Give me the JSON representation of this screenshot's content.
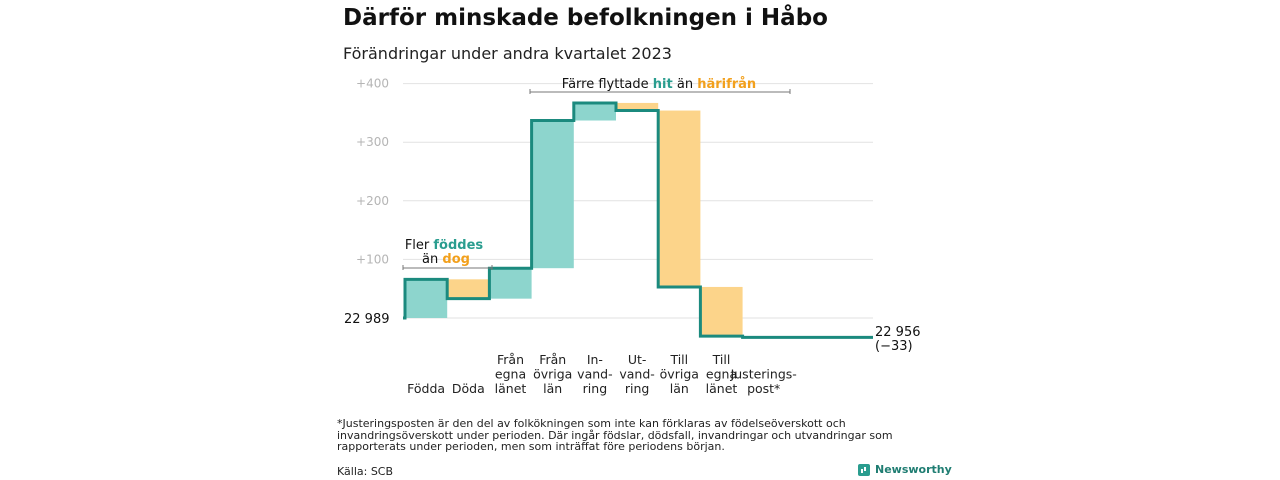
{
  "header": {
    "title": "Därför minskade befolkningen i Håbo",
    "subtitle": "Förändringar under andra kvartalet 2023"
  },
  "colors": {
    "increase": "#8dd5cd",
    "decrease": "#fcd48a",
    "line": "#1b8a7e",
    "teal_text": "#2a9d8f",
    "orange_text": "#f2a01c",
    "grid": "#e2e2e2",
    "tick": "#b5b5b5"
  },
  "annotations": {
    "births": {
      "line1": "Fler ",
      "emph1": "föddes",
      "line2": "än ",
      "emph2": "dog"
    },
    "migration": {
      "pre": "Färre flyttade ",
      "emph1": "hit",
      "mid": " än ",
      "emph2": "härifrån"
    }
  },
  "chart_data": {
    "type": "waterfall",
    "title": "Därför minskade befolkningen i Håbo",
    "subtitle": "Förändringar under andra kvartalet 2023",
    "start": {
      "value": 22989,
      "label": "22  989"
    },
    "end": {
      "value": 22956,
      "label": "22 956",
      "change_label": "(−33)"
    },
    "ylim": [
      0,
      400
    ],
    "yticks": [
      {
        "value": 100,
        "label": "+100"
      },
      {
        "value": 200,
        "label": "+200"
      },
      {
        "value": 300,
        "label": "+300"
      },
      {
        "value": 400,
        "label": "+400"
      }
    ],
    "grid": true,
    "steps": [
      {
        "label": [
          "Födda"
        ],
        "change": 66
      },
      {
        "label": [
          "Döda"
        ],
        "change": -33
      },
      {
        "label": [
          "Från",
          "egna",
          "länet"
        ],
        "change": 52
      },
      {
        "label": [
          "Från",
          "övriga",
          "län"
        ],
        "change": 252
      },
      {
        "label": [
          "In-",
          "vand-",
          "ring"
        ],
        "change": 30
      },
      {
        "label": [
          "Ut-",
          "vand-",
          "ring"
        ],
        "change": -13
      },
      {
        "label": [
          "Till",
          "övriga",
          "län"
        ],
        "change": -301
      },
      {
        "label": [
          "Till",
          "egna",
          "länet"
        ],
        "change": -84
      },
      {
        "label": [
          "Justerings-",
          "post*"
        ],
        "change": -2
      }
    ]
  },
  "footer": {
    "footnote": "*Justeringsposten är den del av folkökningen som inte kan förklaras av födelseöverskott och invandringsöverskott under perioden. Där ingår födslar, dödsfall, invandringar och utvandringar som rapporterats under perioden, men som inträffat före periodens början.",
    "source": "Källa: SCB",
    "brand": "Newsworthy",
    "brand_icon": "newsworthy-logo-icon"
  }
}
